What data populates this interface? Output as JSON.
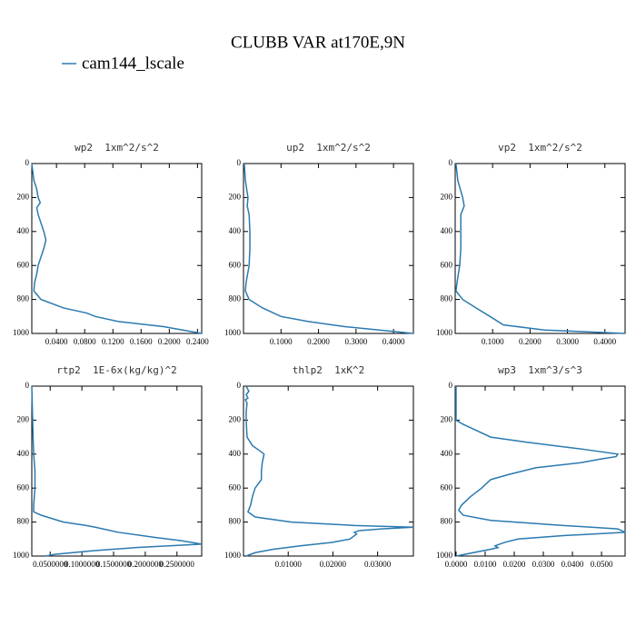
{
  "title": "CLUBB VAR at170E,9N",
  "legend": {
    "name": "cam144_lscale",
    "color": "#2a7ab0"
  },
  "chart_data": [
    {
      "type": "line",
      "title": "wp2  1xm^2/s^2",
      "y": [
        0,
        50,
        100,
        150,
        200,
        230,
        260,
        300,
        350,
        400,
        450,
        500,
        550,
        600,
        650,
        700,
        750,
        800,
        850,
        880,
        900,
        930,
        960,
        1000
      ],
      "series": [
        {
          "values": [
            0.005,
            0.0065,
            0.008,
            0.012,
            0.014,
            0.017,
            0.012,
            0.014,
            0.018,
            0.022,
            0.025,
            0.022,
            0.018,
            0.014,
            0.012,
            0.009,
            0.008,
            0.018,
            0.05,
            0.083,
            0.095,
            0.128,
            0.192,
            0.246
          ]
        }
      ],
      "xlim": [
        0.005,
        0.246
      ],
      "xticks": [
        {
          "value": 0.04,
          "label": "0.0400"
        },
        {
          "value": 0.08,
          "label": "0.0800"
        },
        {
          "value": 0.12,
          "label": "0.1200"
        },
        {
          "value": 0.16,
          "label": "0.1600"
        },
        {
          "value": 0.2,
          "label": "0.2000"
        },
        {
          "value": 0.24,
          "label": "0.2400"
        }
      ],
      "ylim": [
        0,
        1000
      ],
      "yticks": [
        0,
        200,
        400,
        600,
        800,
        1000
      ],
      "y_inverted": true
    },
    {
      "type": "line",
      "title": "up2  1xm^2/s^2",
      "y": [
        0,
        100,
        200,
        250,
        300,
        400,
        500,
        600,
        700,
        750,
        800,
        850,
        900,
        930,
        960,
        1000
      ],
      "series": [
        {
          "values": [
            0.002,
            0.005,
            0.012,
            0.01,
            0.015,
            0.017,
            0.017,
            0.015,
            0.007,
            0.005,
            0.015,
            0.051,
            0.1,
            0.173,
            0.27,
            0.453
          ]
        }
      ],
      "xlim": [
        0,
        0.453
      ],
      "xticks": [
        {
          "value": 0.1,
          "label": "0.1000"
        },
        {
          "value": 0.2,
          "label": "0.2000"
        },
        {
          "value": 0.3,
          "label": "0.3000"
        },
        {
          "value": 0.4,
          "label": "0.4000"
        }
      ],
      "ylim": [
        0,
        1000
      ],
      "yticks": [
        0,
        200,
        400,
        600,
        800,
        1000
      ],
      "y_inverted": true
    },
    {
      "type": "line",
      "title": "vp2  1xm^2/s^2",
      "y": [
        0,
        100,
        200,
        250,
        300,
        400,
        500,
        600,
        700,
        750,
        800,
        850,
        900,
        950,
        980,
        1000
      ],
      "series": [
        {
          "values": [
            0.002,
            0.007,
            0.02,
            0.024,
            0.015,
            0.015,
            0.015,
            0.012,
            0.005,
            0.002,
            0.02,
            0.056,
            0.093,
            0.129,
            0.239,
            0.454
          ]
        }
      ],
      "xlim": [
        0,
        0.454
      ],
      "xticks": [
        {
          "value": 0.1,
          "label": "0.1000"
        },
        {
          "value": 0.2,
          "label": "0.2000"
        },
        {
          "value": 0.3,
          "label": "0.3000"
        },
        {
          "value": 0.4,
          "label": "0.4000"
        }
      ],
      "ylim": [
        0,
        1000
      ],
      "yticks": [
        0,
        200,
        400,
        600,
        800,
        1000
      ],
      "y_inverted": true
    },
    {
      "type": "line",
      "title": "rtp2  1E-6x(kg/kg)^2",
      "y": [
        0,
        300,
        400,
        500,
        600,
        700,
        740,
        760,
        800,
        820,
        830,
        860,
        890,
        910,
        930,
        950,
        970,
        990,
        1000
      ],
      "series": [
        {
          "values": [
            0.021,
            0.023,
            0.024,
            0.026,
            0.026,
            0.024,
            0.024,
            0.036,
            0.071,
            0.107,
            0.121,
            0.157,
            0.214,
            0.257,
            0.289,
            0.186,
            0.114,
            0.057,
            0.043
          ]
        }
      ],
      "xlim": [
        0.021,
        0.289
      ],
      "xticks": [
        {
          "value": 0.05,
          "label": "0.0500000"
        },
        {
          "value": 0.1,
          "label": "0.1000000"
        },
        {
          "value": 0.15,
          "label": "0.1500000"
        },
        {
          "value": 0.2,
          "label": "0.2000000"
        },
        {
          "value": 0.25,
          "label": "0.2500000"
        }
      ],
      "ylim": [
        0,
        1000
      ],
      "yticks": [
        0,
        200,
        400,
        600,
        800,
        1000
      ],
      "y_inverted": true
    },
    {
      "type": "line",
      "title": "thlp2  1xK^2",
      "y": [
        0,
        30,
        50,
        70,
        80,
        100,
        150,
        200,
        300,
        350,
        380,
        400,
        450,
        500,
        550,
        600,
        650,
        700,
        740,
        770,
        800,
        820,
        830,
        840,
        850,
        860,
        870,
        900,
        920,
        940,
        960,
        980,
        1000
      ],
      "series": [
        {
          "values": [
            0.0006,
            0.0012,
            0.0006,
            0.001,
            0.0004,
            0.0008,
            0.0006,
            0.0006,
            0.0008,
            0.002,
            0.0036,
            0.0046,
            0.0042,
            0.004,
            0.004,
            0.0026,
            0.002,
            0.0016,
            0.001,
            0.0026,
            0.0107,
            0.0248,
            0.038,
            0.0309,
            0.0259,
            0.0248,
            0.0253,
            0.0238,
            0.0198,
            0.0127,
            0.0067,
            0.0026,
            0.0006
          ]
        }
      ],
      "xlim": [
        0,
        0.038
      ],
      "xticks": [
        {
          "value": 0.01,
          "label": "0.01000"
        },
        {
          "value": 0.02,
          "label": "0.02000"
        },
        {
          "value": 0.03,
          "label": "0.03000"
        }
      ],
      "ylim": [
        0,
        1000
      ],
      "yticks": [
        0,
        200,
        400,
        600,
        800,
        1000
      ],
      "y_inverted": true
    },
    {
      "type": "line",
      "title": "wp3  1xm^3/s^3",
      "y": [
        0,
        200,
        220,
        300,
        330,
        370,
        400,
        415,
        430,
        450,
        480,
        520,
        550,
        600,
        650,
        700,
        730,
        760,
        790,
        820,
        840,
        860,
        880,
        900,
        920,
        930,
        940,
        950,
        960,
        1000
      ],
      "series": [
        {
          "values": [
            0,
            0,
            0.0019,
            0.0119,
            0.0244,
            0.0431,
            0.0556,
            0.055,
            0.0494,
            0.0431,
            0.0275,
            0.0181,
            0.0119,
            0.0088,
            0.005,
            0.0019,
            0.0009,
            0.0025,
            0.0119,
            0.0369,
            0.0556,
            0.0581,
            0.0369,
            0.0213,
            0.0166,
            0.015,
            0.0134,
            0.0144,
            0.0119,
            0
          ]
        }
      ],
      "xlim": [
        -0.0003,
        0.0581
      ],
      "xticks": [
        {
          "value": 0,
          "label": "0.0000"
        },
        {
          "value": 0.01,
          "label": "0.0100"
        },
        {
          "value": 0.02,
          "label": "0.0200"
        },
        {
          "value": 0.03,
          "label": "0.0300"
        },
        {
          "value": 0.04,
          "label": "0.0400"
        },
        {
          "value": 0.05,
          "label": "0.0500"
        }
      ],
      "ylim": [
        0,
        1000
      ],
      "yticks": [
        0,
        200,
        400,
        600,
        800,
        1000
      ],
      "y_inverted": true
    }
  ]
}
